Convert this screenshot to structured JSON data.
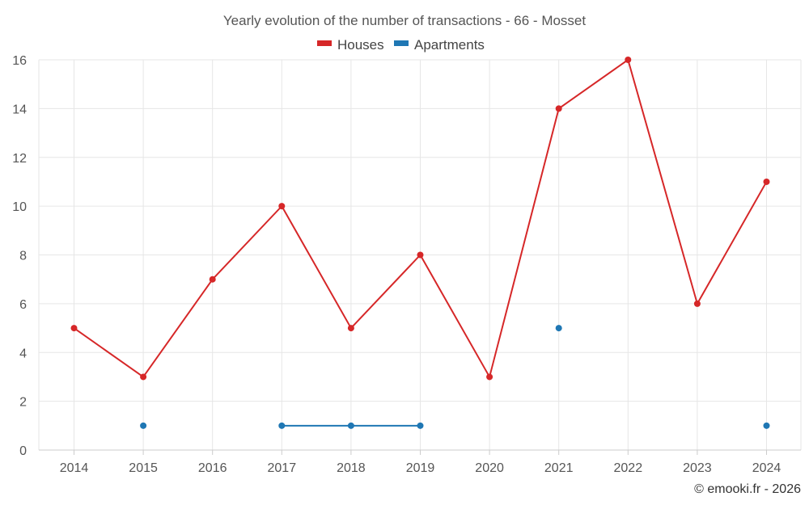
{
  "chart_data": {
    "type": "line",
    "title": "Yearly evolution of the number of transactions - 66 - Mosset",
    "categories": [
      "2014",
      "2015",
      "2016",
      "2017",
      "2018",
      "2019",
      "2020",
      "2021",
      "2022",
      "2023",
      "2024"
    ],
    "ylim": [
      0,
      16
    ],
    "yticks": [
      0,
      2,
      4,
      6,
      8,
      10,
      12,
      14,
      16
    ],
    "grid": true,
    "legend_position": "top-center",
    "series": [
      {
        "name": "Houses",
        "color": "#d62728",
        "values": [
          5,
          3,
          7,
          10,
          5,
          8,
          3,
          14,
          16,
          6,
          11
        ]
      },
      {
        "name": "Apartments",
        "color": "#1f77b4",
        "values": [
          null,
          1,
          null,
          1,
          1,
          1,
          null,
          5,
          null,
          null,
          1
        ]
      }
    ],
    "xlabel": "",
    "ylabel": ""
  },
  "credit": "© emooki.fr - 2026"
}
